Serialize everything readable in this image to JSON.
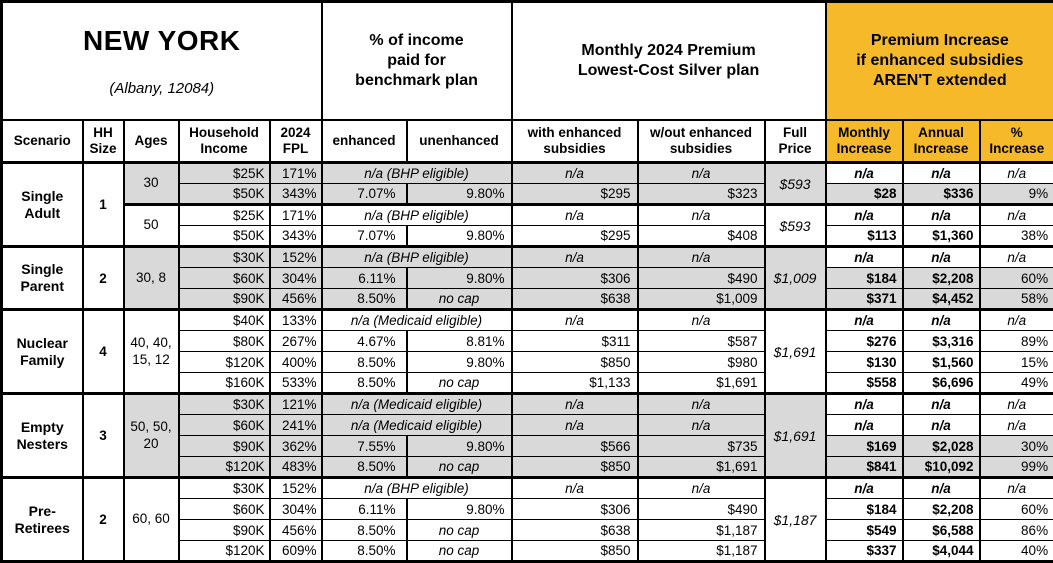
{
  "title": {
    "state": "NEW YORK",
    "location": "(Albany, 12084)"
  },
  "header_groups": {
    "benchmark": "% of income\npaid for\nbenchmark plan",
    "premium": "Monthly 2024 Premium\nLowest-Cost Silver plan",
    "increase": "Premium Increase\nif enhanced subsidies\nAREN'T extended"
  },
  "columns": {
    "scenario": "Scenario",
    "hh_size": "HH\nSize",
    "ages": "Ages",
    "income": "Household\nIncome",
    "fpl": "2024\nFPL",
    "enhanced": "enhanced",
    "unenhanced": "unenhanced",
    "with_sub": "with enhanced\nsubsidies",
    "wout_sub": "w/out enhanced\nsubsidies",
    "full_price": "Full\nPrice",
    "monthly_inc": "Monthly\nIncrease",
    "annual_inc": "Annual\nIncrease",
    "pct_inc": "%\nIncrease"
  },
  "colors": {
    "accent_orange": "#F6B92A",
    "row_shade": "#D9D9D9",
    "border": "#000000"
  },
  "groups": [
    {
      "scenario": "Single\nAdult",
      "hh_size": "1",
      "subgroups": [
        {
          "ages": "30",
          "shaded": true,
          "full_price": "$593",
          "rows": [
            {
              "income": "$25K",
              "fpl": "171%",
              "note": "n/a (BHP eligible)",
              "with_sub": "n/a",
              "wout_sub": "n/a",
              "monthly": "n/a",
              "annual": "n/a",
              "pct": "n/a"
            },
            {
              "income": "$50K",
              "fpl": "343%",
              "enhanced": "7.07%",
              "unenhanced": "9.80%",
              "with_sub": "$295",
              "wout_sub": "$323",
              "monthly": "$28",
              "annual": "$336",
              "pct": "9%"
            }
          ]
        },
        {
          "ages": "50",
          "shaded": false,
          "full_price": "$593",
          "rows": [
            {
              "income": "$25K",
              "fpl": "171%",
              "note": "n/a (BHP eligible)",
              "with_sub": "n/a",
              "wout_sub": "n/a",
              "monthly": "n/a",
              "annual": "n/a",
              "pct": "n/a"
            },
            {
              "income": "$50K",
              "fpl": "343%",
              "enhanced": "7.07%",
              "unenhanced": "9.80%",
              "with_sub": "$295",
              "wout_sub": "$408",
              "monthly": "$113",
              "annual": "$1,360",
              "pct": "38%"
            }
          ]
        }
      ]
    },
    {
      "scenario": "Single\nParent",
      "hh_size": "2",
      "subgroups": [
        {
          "ages": "30, 8",
          "shaded": true,
          "full_price": "$1,009",
          "rows": [
            {
              "income": "$30K",
              "fpl": "152%",
              "note": "n/a (BHP eligible)",
              "with_sub": "n/a",
              "wout_sub": "n/a",
              "monthly": "n/a",
              "annual": "n/a",
              "pct": "n/a"
            },
            {
              "income": "$60K",
              "fpl": "304%",
              "enhanced": "6.11%",
              "unenhanced": "9.80%",
              "with_sub": "$306",
              "wout_sub": "$490",
              "monthly": "$184",
              "annual": "$2,208",
              "pct": "60%"
            },
            {
              "income": "$90K",
              "fpl": "456%",
              "enhanced": "8.50%",
              "unenhanced": "no cap",
              "with_sub": "$638",
              "wout_sub": "$1,009",
              "monthly": "$371",
              "annual": "$4,452",
              "pct": "58%"
            }
          ]
        }
      ]
    },
    {
      "scenario": "Nuclear\nFamily",
      "hh_size": "4",
      "subgroups": [
        {
          "ages": "40, 40,\n15, 12",
          "shaded": false,
          "full_price": "$1,691",
          "rows": [
            {
              "income": "$40K",
              "fpl": "133%",
              "note": "n/a (Medicaid eligible)",
              "with_sub": "n/a",
              "wout_sub": "n/a",
              "monthly": "n/a",
              "annual": "n/a",
              "pct": "n/a"
            },
            {
              "income": "$80K",
              "fpl": "267%",
              "enhanced": "4.67%",
              "unenhanced": "8.81%",
              "with_sub": "$311",
              "wout_sub": "$587",
              "monthly": "$276",
              "annual": "$3,316",
              "pct": "89%"
            },
            {
              "income": "$120K",
              "fpl": "400%",
              "enhanced": "8.50%",
              "unenhanced": "9.80%",
              "with_sub": "$850",
              "wout_sub": "$980",
              "monthly": "$130",
              "annual": "$1,560",
              "pct": "15%"
            },
            {
              "income": "$160K",
              "fpl": "533%",
              "enhanced": "8.50%",
              "unenhanced": "no cap",
              "with_sub": "$1,133",
              "wout_sub": "$1,691",
              "monthly": "$558",
              "annual": "$6,696",
              "pct": "49%"
            }
          ]
        }
      ]
    },
    {
      "scenario": "Empty\nNesters",
      "hh_size": "3",
      "subgroups": [
        {
          "ages": "50, 50,\n20",
          "shaded": true,
          "full_price": "$1,691",
          "rows": [
            {
              "income": "$30K",
              "fpl": "121%",
              "note": "n/a (Medicaid eligible)",
              "with_sub": "n/a",
              "wout_sub": "n/a",
              "monthly": "n/a",
              "annual": "n/a",
              "pct": "n/a"
            },
            {
              "income": "$60K",
              "fpl": "241%",
              "note": "n/a (Medicaid eligible)",
              "with_sub": "n/a",
              "wout_sub": "n/a",
              "monthly": "n/a",
              "annual": "n/a",
              "pct": "n/a"
            },
            {
              "income": "$90K",
              "fpl": "362%",
              "enhanced": "7.55%",
              "unenhanced": "9.80%",
              "with_sub": "$566",
              "wout_sub": "$735",
              "monthly": "$169",
              "annual": "$2,028",
              "pct": "30%"
            },
            {
              "income": "$120K",
              "fpl": "483%",
              "enhanced": "8.50%",
              "unenhanced": "no cap",
              "with_sub": "$850",
              "wout_sub": "$1,691",
              "monthly": "$841",
              "annual": "$10,092",
              "pct": "99%"
            }
          ]
        }
      ]
    },
    {
      "scenario": "Pre-\nRetirees",
      "hh_size": "2",
      "subgroups": [
        {
          "ages": "60, 60",
          "shaded": false,
          "full_price": "$1,187",
          "rows": [
            {
              "income": "$30K",
              "fpl": "152%",
              "note": "n/a (BHP eligible)",
              "with_sub": "n/a",
              "wout_sub": "n/a",
              "monthly": "n/a",
              "annual": "n/a",
              "pct": "n/a"
            },
            {
              "income": "$60K",
              "fpl": "304%",
              "enhanced": "6.11%",
              "unenhanced": "9.80%",
              "with_sub": "$306",
              "wout_sub": "$490",
              "monthly": "$184",
              "annual": "$2,208",
              "pct": "60%"
            },
            {
              "income": "$90K",
              "fpl": "456%",
              "enhanced": "8.50%",
              "unenhanced": "no cap",
              "with_sub": "$638",
              "wout_sub": "$1,187",
              "monthly": "$549",
              "annual": "$6,588",
              "pct": "86%"
            },
            {
              "income": "$120K",
              "fpl": "609%",
              "enhanced": "8.50%",
              "unenhanced": "no cap",
              "with_sub": "$850",
              "wout_sub": "$1,187",
              "monthly": "$337",
              "annual": "$4,044",
              "pct": "40%"
            }
          ]
        }
      ]
    }
  ]
}
